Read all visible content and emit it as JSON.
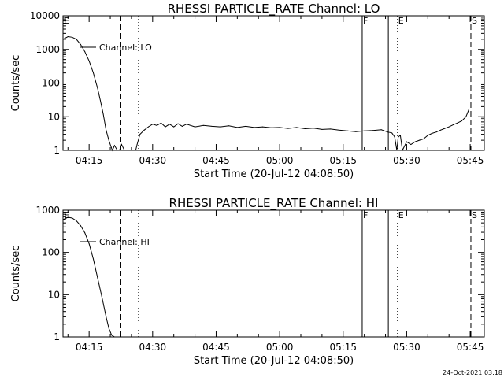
{
  "chart_data": [
    {
      "type": "line",
      "title": "RHESSI PARTICLE_RATE Channel: LO",
      "xlabel": "Start Time (20-Jul-12 04:08:50)",
      "ylabel": "Counts/sec",
      "yscale": "log",
      "xlim": [
        "04:08:50",
        "05:48:20"
      ],
      "ylim": [
        1,
        10000
      ],
      "x_tick_labels": [
        "04:15",
        "04:30",
        "04:45",
        "05:00",
        "05:15",
        "05:30",
        "05:45"
      ],
      "y_tick_labels": [
        "1",
        "10",
        "100",
        "1000",
        "10000"
      ],
      "legend": "Channel: LO",
      "legend_position": "top-left",
      "series": [
        {
          "name": "Channel: LO",
          "x": [
            "04:08:50",
            "04:10:00",
            "04:11:00",
            "04:12:00",
            "04:13:00",
            "04:14:00",
            "04:15:00",
            "04:16:00",
            "04:17:00",
            "04:17:40",
            "04:18:20",
            "04:19:00",
            "04:19:40",
            "04:20:10",
            "04:20:30",
            "04:21:00",
            "04:21:40",
            "04:22:10",
            "04:22:40",
            "04:23:20",
            "04:24:00",
            "04:25:00",
            "04:26:00",
            "04:26:20",
            "04:27:00",
            "04:28:00",
            "04:29:00",
            "04:30:00",
            "04:31:00",
            "04:32:00",
            "04:33:00",
            "04:34:00",
            "04:35:00",
            "04:36:00",
            "04:37:00",
            "04:38:00",
            "04:40:00",
            "04:42:00",
            "04:44:00",
            "04:46:00",
            "04:48:00",
            "04:50:00",
            "04:52:00",
            "04:54:00",
            "04:56:00",
            "04:58:00",
            "05:00:00",
            "05:02:00",
            "05:04:00",
            "05:06:00",
            "05:08:00",
            "05:10:00",
            "05:12:00",
            "05:14:00",
            "05:16:00",
            "05:18:00",
            "05:20:00",
            "05:22:00",
            "05:24:00",
            "05:25:30",
            "05:26:30",
            "05:27:10",
            "05:27:40",
            "05:28:00",
            "05:28:30",
            "05:29:00",
            "05:30:00",
            "05:31:00",
            "05:32:00",
            "05:33:00",
            "05:34:00",
            "05:35:00",
            "05:36:00",
            "05:37:00",
            "05:38:00",
            "05:39:00",
            "05:40:00",
            "05:41:00",
            "05:42:00",
            "05:43:00",
            "05:44:00",
            "05:44:40"
          ],
          "y": [
            2000,
            2400,
            2300,
            2000,
            1400,
            850,
            450,
            200,
            70,
            30,
            12,
            4,
            2,
            1.3,
            1,
            1.4,
            1,
            1,
            1.5,
            1,
            1,
            1,
            1,
            1.5,
            3,
            4,
            5,
            6,
            5.5,
            6.5,
            5,
            6,
            5,
            6.2,
            5.2,
            6,
            5,
            5.5,
            5.2,
            5,
            5.4,
            4.8,
            5.2,
            4.8,
            5,
            4.7,
            4.8,
            4.5,
            4.8,
            4.4,
            4.6,
            4.2,
            4.3,
            4,
            3.8,
            3.6,
            3.8,
            3.9,
            4.1,
            3.5,
            3.3,
            2.5,
            1,
            2.5,
            2.8,
            1,
            1.8,
            1.5,
            1.8,
            2,
            2.2,
            2.8,
            3.2,
            3.5,
            4,
            4.5,
            5,
            5.8,
            6.5,
            7.5,
            10,
            16
          ]
        }
      ],
      "event_markers": [
        {
          "label": "E",
          "time": "04:08:50",
          "style": "dashed"
        },
        {
          "label": "",
          "time": "04:22:30",
          "style": "dashed"
        },
        {
          "label": "",
          "time": "04:26:40",
          "style": "dotted"
        },
        {
          "label": "F",
          "time": "05:19:30",
          "style": "solid"
        },
        {
          "label": "",
          "time": "05:25:40",
          "style": "solid"
        },
        {
          "label": "E",
          "time": "05:27:50",
          "style": "dotted"
        },
        {
          "label": "S",
          "time": "05:45:10",
          "style": "dashed"
        }
      ]
    },
    {
      "type": "line",
      "title": "RHESSI PARTICLE_RATE Channel: HI",
      "xlabel": "Start Time (20-Jul-12 04:08:50)",
      "ylabel": "Counts/sec",
      "yscale": "log",
      "xlim": [
        "04:08:50",
        "05:48:20"
      ],
      "ylim": [
        1,
        1000
      ],
      "x_tick_labels": [
        "04:15",
        "04:30",
        "04:45",
        "05:00",
        "05:15",
        "05:30",
        "05:45"
      ],
      "y_tick_labels": [
        "1",
        "10",
        "100",
        "1000"
      ],
      "legend": "Channel: HI",
      "legend_position": "top-left",
      "series": [
        {
          "name": "Channel: HI",
          "x": [
            "04:08:50",
            "04:10:00",
            "04:11:00",
            "04:12:00",
            "04:13:00",
            "04:14:00",
            "04:15:00",
            "04:16:00",
            "04:17:00",
            "04:18:00",
            "04:19:00",
            "04:19:40",
            "04:20:20",
            "04:21:00"
          ],
          "y": [
            600,
            680,
            650,
            560,
            430,
            290,
            160,
            70,
            25,
            9,
            3,
            1.6,
            1.1,
            0.9
          ]
        }
      ],
      "event_markers": [
        {
          "label": "E",
          "time": "04:08:50",
          "style": "dashed"
        },
        {
          "label": "",
          "time": "04:22:30",
          "style": "dashed"
        },
        {
          "label": "",
          "time": "04:26:40",
          "style": "dotted"
        },
        {
          "label": "F",
          "time": "05:19:30",
          "style": "solid"
        },
        {
          "label": "",
          "time": "05:25:40",
          "style": "solid"
        },
        {
          "label": "E",
          "time": "05:27:50",
          "style": "dotted"
        },
        {
          "label": "S",
          "time": "05:45:10",
          "style": "dashed"
        }
      ]
    }
  ],
  "footer": {
    "timestamp": "24-Oct-2021 03:18"
  }
}
